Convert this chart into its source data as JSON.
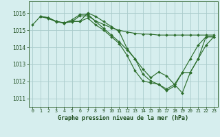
{
  "title": "Graphe pression niveau de la mer (hPa)",
  "background_color": "#d6eeee",
  "grid_color": "#aacccc",
  "line_color": "#2d6e2d",
  "ylim": [
    1010.5,
    1016.7
  ],
  "xlim": [
    -0.5,
    23.5
  ],
  "yticks": [
    1011,
    1012,
    1013,
    1014,
    1015,
    1016
  ],
  "series": [
    {
      "x": [
        1,
        2,
        3,
        4,
        5,
        6,
        7,
        8,
        9,
        10,
        11,
        12,
        13,
        14,
        15,
        16,
        17,
        18,
        19,
        20,
        21,
        22,
        23
      ],
      "y": [
        1015.8,
        1015.7,
        1015.5,
        1015.45,
        1015.5,
        1015.85,
        1015.85,
        1015.55,
        1015.35,
        1015.15,
        1015.0,
        1014.9,
        1014.82,
        1014.78,
        1014.77,
        1014.72,
        1014.72,
        1014.72,
        1014.72,
        1014.72,
        1014.72,
        1014.72,
        1014.72
      ]
    },
    {
      "x": [
        1,
        2,
        3,
        4,
        5,
        6,
        7,
        8,
        9,
        10,
        11,
        12,
        13,
        14,
        15,
        16,
        17,
        18,
        19,
        20,
        21,
        22,
        23
      ],
      "y": [
        1015.82,
        1015.72,
        1015.52,
        1015.42,
        1015.62,
        1015.92,
        1015.95,
        1015.52,
        1015.12,
        1014.72,
        1014.32,
        1013.85,
        1013.32,
        1012.72,
        1012.22,
        1012.55,
        1012.32,
        1011.82,
        1011.32,
        1012.52,
        1013.32,
        1014.12,
        1014.62
      ]
    },
    {
      "x": [
        1,
        2,
        3,
        4,
        5,
        6,
        7,
        8,
        9,
        10,
        11,
        12,
        13,
        14,
        15,
        16,
        17,
        18,
        19,
        20,
        21,
        22,
        23
      ],
      "y": [
        1015.82,
        1015.72,
        1015.52,
        1015.42,
        1015.52,
        1015.52,
        1015.72,
        1015.32,
        1015.02,
        1014.62,
        1014.22,
        1013.52,
        1012.62,
        1012.02,
        1011.92,
        1011.82,
        1011.55,
        1011.82,
        1012.52,
        1013.32,
        1014.12,
        1014.62,
        1014.62
      ]
    },
    {
      "x": [
        0,
        1,
        2,
        3,
        4,
        5,
        6,
        7,
        8,
        9,
        10,
        11,
        12,
        13,
        14,
        15,
        16,
        17,
        18,
        19,
        20,
        21,
        22,
        23
      ],
      "y": [
        1015.32,
        1015.82,
        1015.75,
        1015.52,
        1015.45,
        1015.52,
        1015.52,
        1016.02,
        1015.82,
        1015.52,
        1015.22,
        1014.92,
        1013.92,
        1013.32,
        1012.42,
        1012.02,
        1011.82,
        1011.45,
        1011.72,
        1012.52,
        1012.52,
        1013.32,
        1014.62,
        1014.62
      ]
    }
  ]
}
